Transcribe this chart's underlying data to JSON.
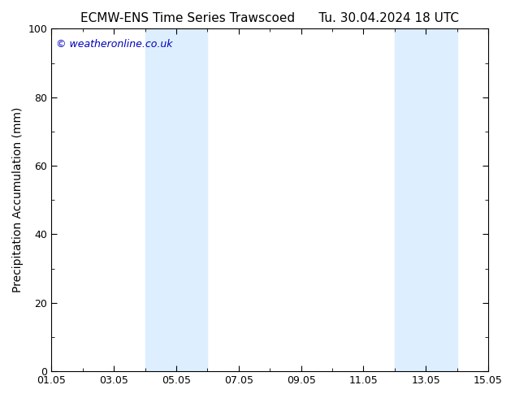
{
  "title": "ECMW-ENS Time Series Trawscoed      Tu. 30.04.2024 18 UTC",
  "ylabel": "Precipitation Accumulation (mm)",
  "ylim": [
    0,
    100
  ],
  "yticks": [
    0,
    20,
    40,
    60,
    80,
    100
  ],
  "xlim_start": 0,
  "xlim_end": 14,
  "xtick_labels": [
    "01.05",
    "03.05",
    "05.05",
    "07.05",
    "09.05",
    "11.05",
    "13.05",
    "15.05"
  ],
  "xtick_positions": [
    0,
    2,
    4,
    6,
    8,
    10,
    12,
    14
  ],
  "shade_bands": [
    {
      "xmin": 3.0,
      "xmax": 4.0
    },
    {
      "xmin": 4.0,
      "xmax": 5.0
    },
    {
      "xmin": 11.0,
      "xmax": 12.0
    },
    {
      "xmin": 12.0,
      "xmax": 13.0
    }
  ],
  "shade_color": "#ddeeff",
  "watermark": "© weatheronline.co.uk",
  "watermark_color": "#0000bb",
  "background_color": "#ffffff",
  "title_fontsize": 11,
  "axes_fontsize": 10,
  "tick_fontsize": 9,
  "watermark_fontsize": 9
}
